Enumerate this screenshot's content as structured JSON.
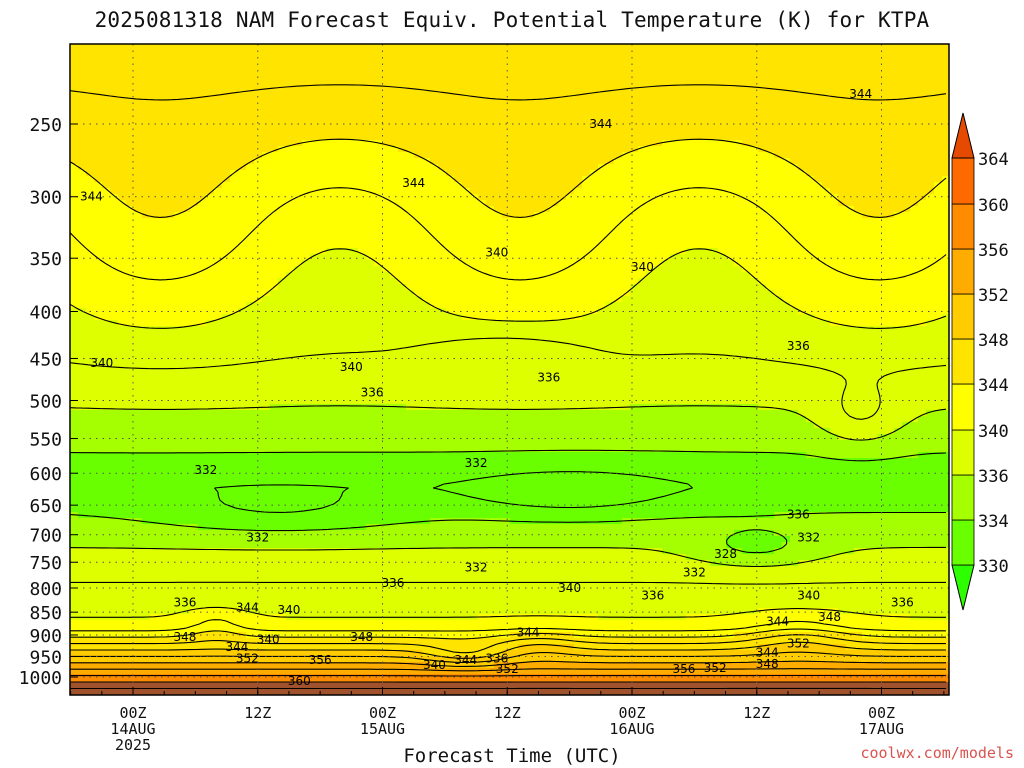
{
  "chart_data": {
    "type": "heatmap",
    "title": "2025081318 NAM Forecast Equiv. Potential Temperature (K) for KTPA",
    "xlabel": "Forecast Time (UTC)",
    "ylabel": "",
    "y_ticks": [
      250,
      300,
      350,
      400,
      450,
      500,
      550,
      600,
      650,
      700,
      750,
      800,
      850,
      900,
      950,
      1000
    ],
    "ylim": [
      1025,
      200
    ],
    "y_scale": "log-pressure",
    "x_ticks": [
      {
        "hour": 6,
        "lines": [
          "00Z",
          "14AUG",
          "2025"
        ]
      },
      {
        "hour": 18,
        "lines": [
          "12Z"
        ]
      },
      {
        "hour": 30,
        "lines": [
          "00Z",
          "15AUG"
        ]
      },
      {
        "hour": 42,
        "lines": [
          "12Z"
        ]
      },
      {
        "hour": 54,
        "lines": [
          "00Z",
          "16AUG"
        ]
      },
      {
        "hour": 66,
        "lines": [
          "12Z"
        ]
      },
      {
        "hour": 78,
        "lines": [
          "00Z",
          "17AUG"
        ]
      }
    ],
    "xlim": [
      0,
      84
    ],
    "colorbar": {
      "levels": [
        330,
        334,
        336,
        340,
        344,
        348,
        352,
        356,
        360,
        364
      ],
      "colors": [
        "#2eff00",
        "#6aff00",
        "#a6ff00",
        "#ddff00",
        "#ffff00",
        "#ffe400",
        "#ffcc00",
        "#ffac00",
        "#ff8b00",
        "#ff6a00",
        "#e64a00"
      ]
    },
    "labeled_contours": [
      {
        "value": 344,
        "hour": 2,
        "p": 300
      },
      {
        "value": 344,
        "hour": 33,
        "p": 290
      },
      {
        "value": 344,
        "hour": 51,
        "p": 250
      },
      {
        "value": 344,
        "hour": 76,
        "p": 232
      },
      {
        "value": 340,
        "hour": 41,
        "p": 345
      },
      {
        "value": 340,
        "hour": 55,
        "p": 358
      },
      {
        "value": 340,
        "hour": 27,
        "p": 460
      },
      {
        "value": 340,
        "hour": 3,
        "p": 455
      },
      {
        "value": 336,
        "hour": 70,
        "p": 436
      },
      {
        "value": 336,
        "hour": 46,
        "p": 472
      },
      {
        "value": 336,
        "hour": 29,
        "p": 490
      },
      {
        "value": 332,
        "hour": 13,
        "p": 595
      },
      {
        "value": 332,
        "hour": 39,
        "p": 585
      },
      {
        "value": 332,
        "hour": 18,
        "p": 705
      },
      {
        "value": 328,
        "hour": 63,
        "p": 735
      },
      {
        "value": 332,
        "hour": 71,
        "p": 705
      },
      {
        "value": 336,
        "hour": 70,
        "p": 665
      },
      {
        "value": 332,
        "hour": 39,
        "p": 760
      },
      {
        "value": 332,
        "hour": 60,
        "p": 770
      },
      {
        "value": 336,
        "hour": 31,
        "p": 790
      },
      {
        "value": 340,
        "hour": 48,
        "p": 800
      },
      {
        "value": 336,
        "hour": 56,
        "p": 815
      },
      {
        "value": 340,
        "hour": 71,
        "p": 815
      },
      {
        "value": 336,
        "hour": 80,
        "p": 830
      },
      {
        "value": 336,
        "hour": 11,
        "p": 830
      },
      {
        "value": 344,
        "hour": 17,
        "p": 840
      },
      {
        "value": 340,
        "hour": 21,
        "p": 845
      },
      {
        "value": 344,
        "hour": 68,
        "p": 870
      },
      {
        "value": 348,
        "hour": 73,
        "p": 860
      },
      {
        "value": 348,
        "hour": 11,
        "p": 905
      },
      {
        "value": 344,
        "hour": 16,
        "p": 928
      },
      {
        "value": 340,
        "hour": 19,
        "p": 910
      },
      {
        "value": 348,
        "hour": 28,
        "p": 905
      },
      {
        "value": 344,
        "hour": 44,
        "p": 895
      },
      {
        "value": 352,
        "hour": 70,
        "p": 920
      },
      {
        "value": 344,
        "hour": 67,
        "p": 940
      },
      {
        "value": 348,
        "hour": 67,
        "p": 968
      },
      {
        "value": 352,
        "hour": 17,
        "p": 955
      },
      {
        "value": 356,
        "hour": 24,
        "p": 958
      },
      {
        "value": 340,
        "hour": 35,
        "p": 970
      },
      {
        "value": 344,
        "hour": 38,
        "p": 958
      },
      {
        "value": 336,
        "hour": 41,
        "p": 955
      },
      {
        "value": 352,
        "hour": 42,
        "p": 980
      },
      {
        "value": 356,
        "hour": 59,
        "p": 980
      },
      {
        "value": 352,
        "hour": 62,
        "p": 978
      },
      {
        "value": 360,
        "hour": 22,
        "p": 1010
      }
    ]
  },
  "credit": "coolwx.com/models"
}
